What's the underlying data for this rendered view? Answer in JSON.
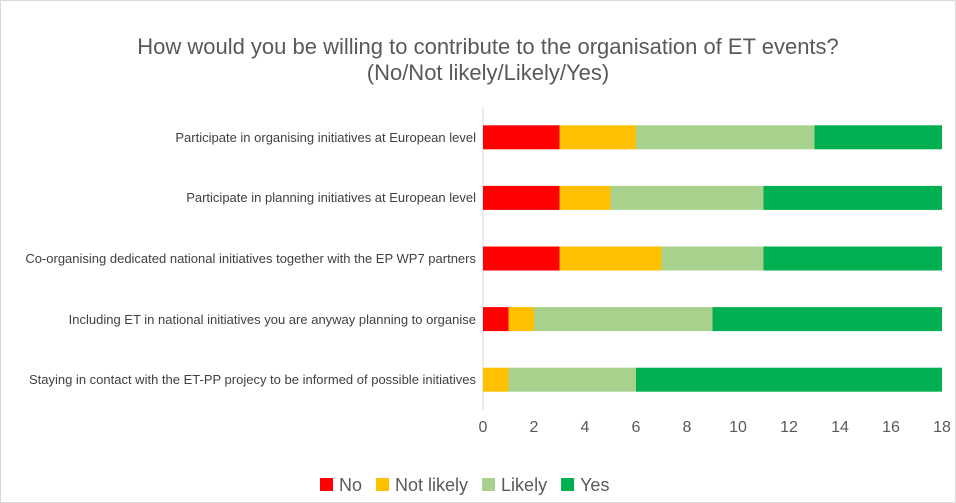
{
  "chart_data": {
    "type": "stacked_bar_horizontal",
    "title": "How would you be willing to contribute to the organisation of ET events?  (No/Not likely/Likely/Yes)",
    "categories": [
      "Participate in organising initiatives at European level",
      "Participate in planning initiatives at European level",
      "Co-organising dedicated national initiatives together with the EP WP7 partners",
      "Including ET in national initiatives you are anyway planning to organise",
      "Staying in contact with the ET-PP projecy to be informed of possible initiatives"
    ],
    "series": [
      {
        "name": "No",
        "color": "#ff0000",
        "values": [
          3,
          3,
          3,
          1,
          0
        ]
      },
      {
        "name": "Not likely",
        "color": "#ffc000",
        "values": [
          3,
          2,
          4,
          1,
          1
        ]
      },
      {
        "name": "Likely",
        "color": "#a9d18e",
        "values": [
          7,
          6,
          4,
          7,
          5
        ]
      },
      {
        "name": "Yes",
        "color": "#00b050",
        "values": [
          5,
          7,
          7,
          9,
          12
        ]
      }
    ],
    "xlim": [
      0,
      18
    ],
    "xticks": [
      0,
      2,
      4,
      6,
      8,
      10,
      12,
      14,
      16,
      18
    ],
    "legend": "bottom"
  }
}
